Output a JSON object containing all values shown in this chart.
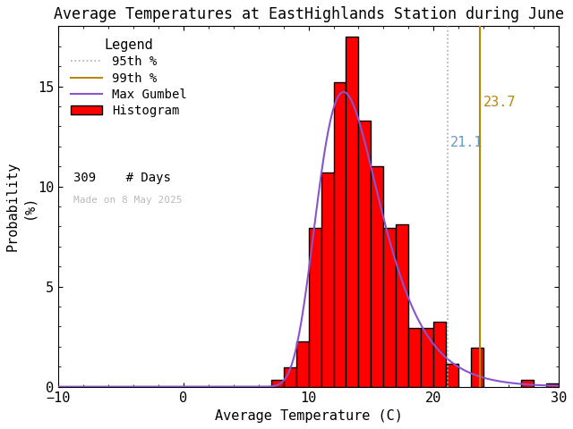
{
  "title": "Average Temperatures at EastHighlands Station during June",
  "xlabel": "Average Temperature (C)",
  "ylabel": "Probability\n(%)",
  "xlim": [
    -10,
    30
  ],
  "ylim": [
    0,
    18
  ],
  "xticks": [
    -10,
    0,
    10,
    20,
    30
  ],
  "yticks": [
    0,
    5,
    10,
    15
  ],
  "bin_edges": [
    7,
    8,
    9,
    10,
    11,
    12,
    13,
    14,
    15,
    16,
    17,
    18,
    19,
    20,
    21,
    22,
    23,
    24,
    25,
    26,
    27,
    28,
    29,
    30
  ],
  "bar_heights": [
    0.32,
    0.97,
    2.27,
    7.93,
    10.68,
    15.21,
    17.48,
    13.27,
    11.0,
    7.93,
    8.09,
    2.91,
    2.91,
    3.24,
    1.13,
    0.0,
    1.94,
    0.0,
    0.0,
    0.0,
    0.32,
    0.0,
    0.16
  ],
  "bar_color": "#ff0000",
  "bar_edgecolor": "#000000",
  "hist_linewidth": 1.0,
  "pct_95": 21.1,
  "pct_99": 23.7,
  "pct_95_color": "#aaaaaa",
  "pct_99_color": "#b8860b",
  "pct_95_label_color": "#6699cc",
  "pct_99_label_color": "#b8860b",
  "gumbel_color": "#8855cc",
  "gumbel_mu": 12.8,
  "gumbel_beta": 2.5,
  "n_days": 309,
  "watermark": "Made on 8 May 2025",
  "watermark_color": "#bbbbbb",
  "bg_color": "#ffffff",
  "legend_title": "Legend",
  "font_size": 11,
  "title_font_size": 12,
  "figsize": [
    6.4,
    4.8
  ],
  "dpi": 100
}
